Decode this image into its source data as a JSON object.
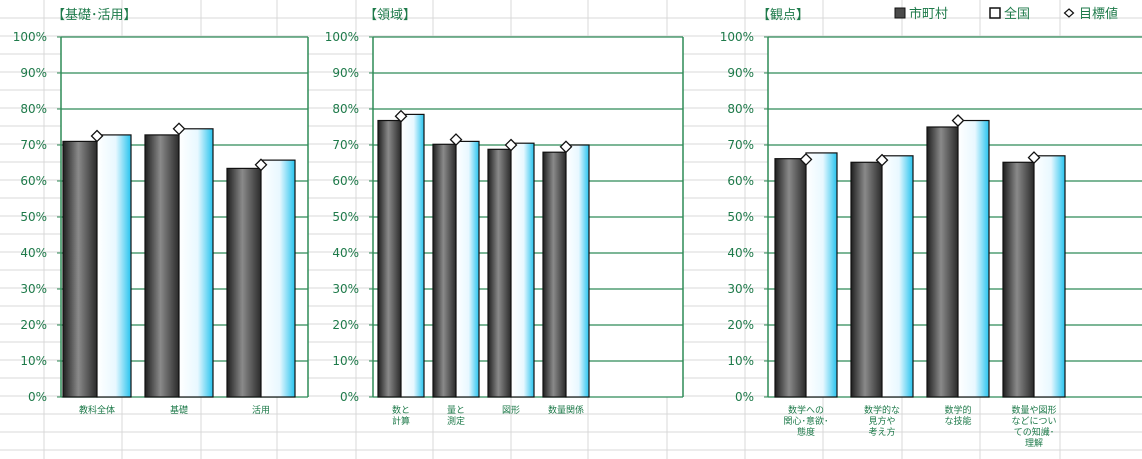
{
  "legend": {
    "items": [
      {
        "label": "市町村",
        "swatch": "dark-filled-square"
      },
      {
        "label": "全国",
        "swatch": "cyan-outlined-square"
      },
      {
        "label": "目標値",
        "swatch": "diamond-marker"
      }
    ]
  },
  "colors": {
    "frame": "#2e8b57",
    "text": "#1e7a4a",
    "cell_grid": "#d9d9d9",
    "bar_dark": "#4a4a4a",
    "bar_cyan": "#27c3ee",
    "target_marker": "#ffffff"
  },
  "chart_data": [
    {
      "type": "bar",
      "title": "【基礎･活用】",
      "yticks": [
        "0%",
        "10%",
        "20%",
        "30%",
        "40%",
        "50%",
        "60%",
        "70%",
        "80%",
        "90%",
        "100%"
      ],
      "ylim": [
        0,
        100
      ],
      "grid": true,
      "categories": [
        [
          "教科全体"
        ],
        [
          "基礎"
        ],
        [
          "活用"
        ]
      ],
      "series": [
        {
          "name": "市町村",
          "values": [
            71.0,
            72.8,
            63.5
          ]
        },
        {
          "name": "全国",
          "values": [
            72.8,
            74.5,
            65.8
          ]
        },
        {
          "name": "目標値",
          "values": [
            72.5,
            74.5,
            64.5
          ]
        }
      ]
    },
    {
      "type": "bar",
      "title": "【領域】",
      "yticks": [
        "0%",
        "10%",
        "20%",
        "30%",
        "40%",
        "50%",
        "60%",
        "70%",
        "80%",
        "90%",
        "100%"
      ],
      "ylim": [
        0,
        100
      ],
      "grid": true,
      "categories": [
        [
          "数と",
          "計算"
        ],
        [
          "量と",
          "測定"
        ],
        [
          "図形"
        ],
        [
          "数量関係"
        ]
      ],
      "series": [
        {
          "name": "市町村",
          "values": [
            76.8,
            70.2,
            68.8,
            68.0
          ]
        },
        {
          "name": "全国",
          "values": [
            78.5,
            71.0,
            70.5,
            70.0
          ]
        },
        {
          "name": "目標値",
          "values": [
            78.0,
            71.5,
            70.0,
            69.5
          ]
        }
      ]
    },
    {
      "type": "bar",
      "title": "【観点】",
      "yticks": [
        "0%",
        "10%",
        "20%",
        "30%",
        "40%",
        "50%",
        "60%",
        "70%",
        "80%",
        "90%",
        "100%"
      ],
      "ylim": [
        0,
        100
      ],
      "grid": true,
      "legend_position": "top-right",
      "categories": [
        [
          "数学への",
          "関心･意欲･",
          "態度"
        ],
        [
          "数学的な",
          "見方や",
          "考え方"
        ],
        [
          "数学的",
          "な技能"
        ],
        [
          "数量や図形",
          "などについ",
          "ての知識･",
          "理解"
        ]
      ],
      "series": [
        {
          "name": "市町村",
          "values": [
            66.2,
            65.2,
            75.0,
            65.2
          ]
        },
        {
          "name": "全国",
          "values": [
            67.8,
            67.0,
            76.8,
            67.0
          ]
        },
        {
          "name": "目標値",
          "values": [
            66.0,
            65.8,
            76.8,
            66.5
          ]
        }
      ]
    }
  ]
}
